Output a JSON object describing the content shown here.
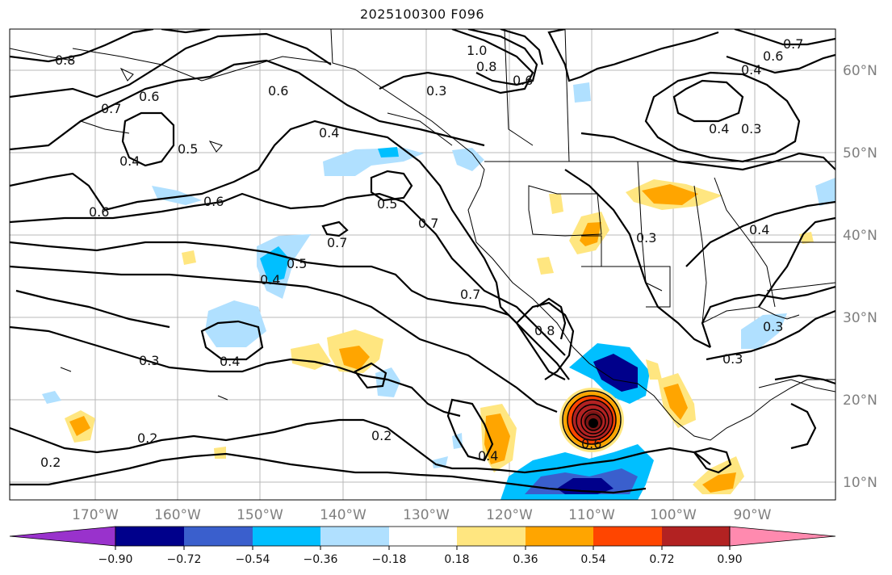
{
  "title": "2025100300 F096",
  "map": {
    "lon_ticks": [
      "170°W",
      "160°W",
      "150°W",
      "140°W",
      "130°W",
      "120°W",
      "110°W",
      "100°W",
      "90°W"
    ],
    "lat_ticks": [
      "60°N",
      "50°N",
      "40°N",
      "30°N",
      "20°N",
      "10°N"
    ],
    "contour_labels": [
      "0.8",
      "0.6",
      "0.7",
      "0.6",
      "0.5",
      "0.4",
      "0.6",
      "0.4",
      "0.3",
      "1.0",
      "0.8",
      "0.6",
      "0.4",
      "0.6",
      "0.7",
      "0.4",
      "0.3",
      "0.6",
      "0.5",
      "0.7",
      "0.7",
      "0.5",
      "0.4",
      "0.3",
      "0.4",
      "0.7",
      "0.8",
      "0.4",
      "0.3",
      "0.2",
      "0.2",
      "0.2",
      "0.4",
      "0.3",
      "0.3",
      "0.6"
    ]
  },
  "colorbar": {
    "tick_labels": [
      "−0.90",
      "−0.72",
      "−0.54",
      "−0.36",
      "−0.18",
      "0.18",
      "0.36",
      "0.54",
      "0.72",
      "0.90"
    ],
    "colors": [
      "#9932cc",
      "#00008b",
      "#3a5fcd",
      "#00bfff",
      "#b0e0ff",
      "#ffffff",
      "#ffe680",
      "#ffa500",
      "#ff4500",
      "#b22222",
      "#ff8aaf"
    ]
  }
}
